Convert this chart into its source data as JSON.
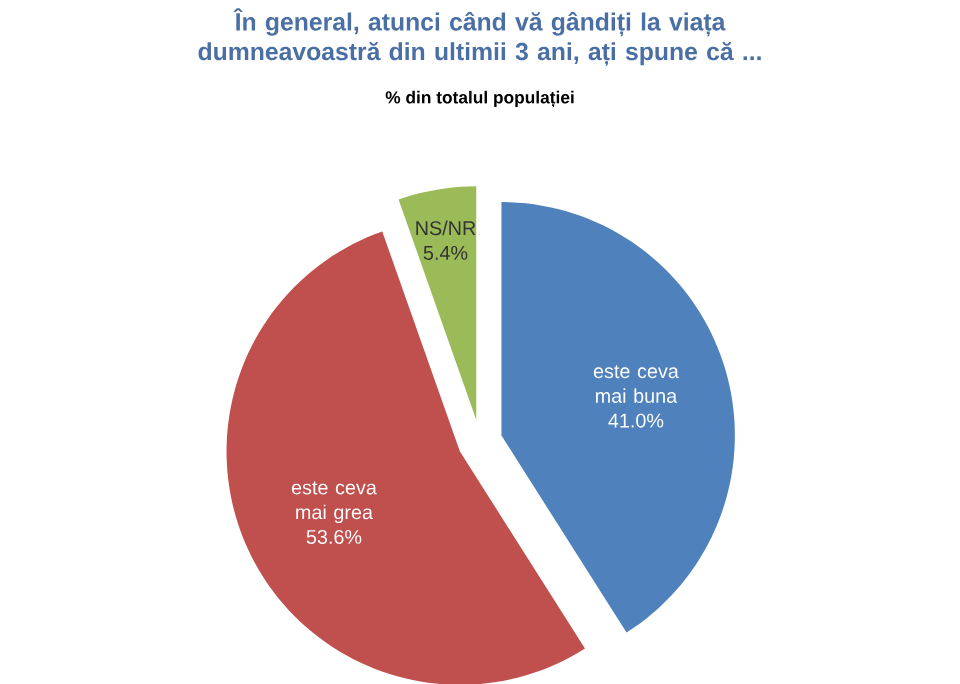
{
  "chart_data": {
    "type": "pie",
    "title": "În general, atunci când vă gândiți la viața dumneavoastră din ultimii 3 ani, ați spune că ...",
    "subtitle": "% din totalul populației",
    "categories": [
      "este ceva mai buna",
      "este ceva mai grea",
      "NS/NR"
    ],
    "values": [
      41.0,
      53.6,
      5.4
    ],
    "value_labels": [
      "41.0%",
      "53.6%",
      "5.4%"
    ],
    "colors": [
      "#4f81bd",
      "#c0504d",
      "#9bbb59"
    ]
  }
}
